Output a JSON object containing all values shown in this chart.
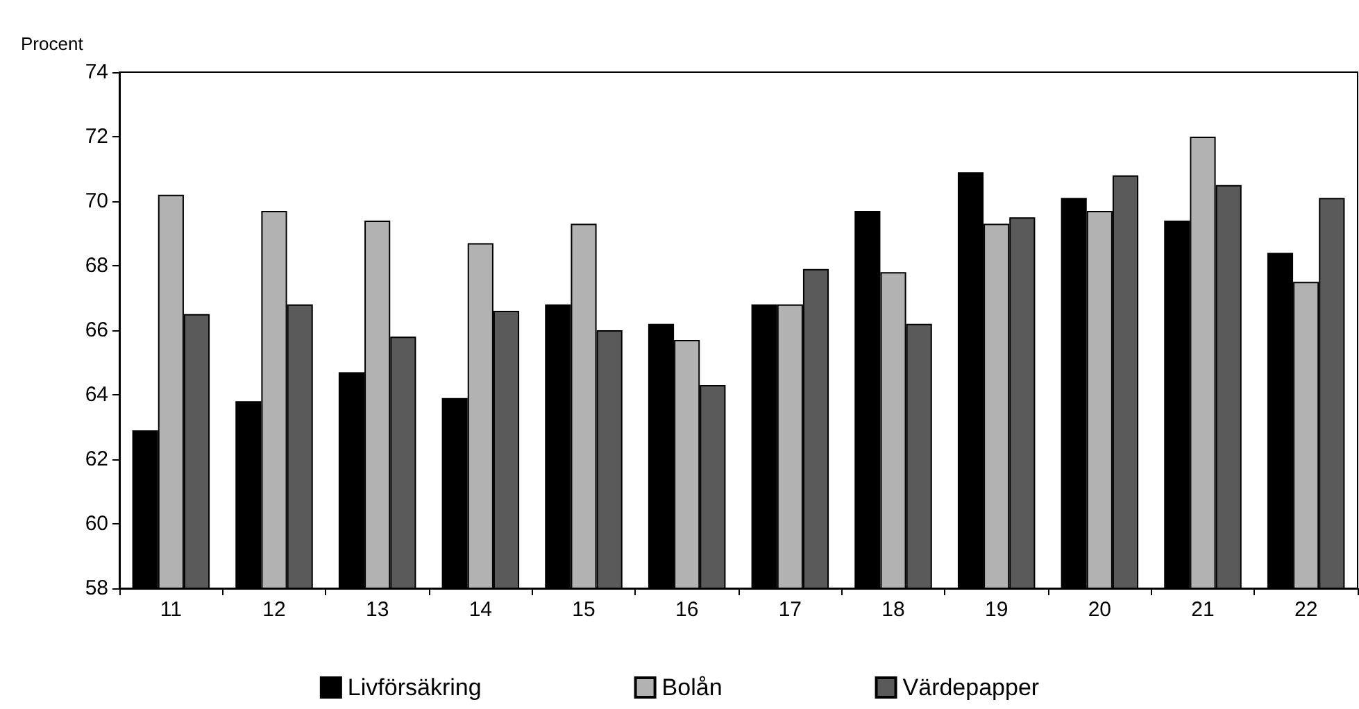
{
  "chart_data": {
    "type": "bar",
    "ylabel": "Procent",
    "categories": [
      "11",
      "12",
      "13",
      "14",
      "15",
      "16",
      "17",
      "18",
      "19",
      "20",
      "21",
      "22"
    ],
    "series": [
      {
        "name": "Livförsäkring",
        "color": "#000000",
        "values": [
          62.9,
          63.8,
          64.7,
          63.9,
          66.8,
          66.2,
          66.8,
          69.7,
          70.9,
          70.1,
          69.4,
          68.4
        ]
      },
      {
        "name": "Bolån",
        "color": "#b2b2b2",
        "values": [
          70.2,
          69.7,
          69.4,
          68.7,
          69.3,
          65.7,
          66.8,
          67.8,
          69.3,
          69.7,
          72.0,
          67.5
        ]
      },
      {
        "name": "Värdepapper",
        "color": "#5a5a5a",
        "values": [
          66.5,
          66.8,
          65.8,
          66.6,
          66.0,
          64.3,
          67.9,
          66.2,
          69.5,
          70.8,
          70.5,
          70.1
        ]
      }
    ],
    "ylim": [
      58,
      74
    ],
    "yticks": [
      58,
      60,
      62,
      64,
      66,
      68,
      70,
      72,
      74
    ],
    "grid": false,
    "legend": "bottom"
  }
}
